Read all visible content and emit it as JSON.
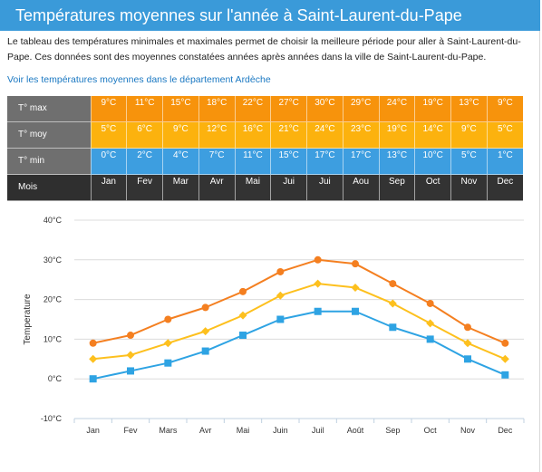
{
  "page": {
    "title": "Températures moyennes sur l'année à Saint-Laurent-du-Pape",
    "intro": "Le tableau des températures minimales et maximales permet de choisir la meilleure période pour aller à Saint-Laurent-du-Pape. Ces données sont des moyennes constatées années après années dans la ville de Saint-Laurent-du-Pape.",
    "link": "Voir les températures moyennes dans le département Ardèche"
  },
  "table": {
    "row_labels": {
      "max": "T° max",
      "moy": "T° moy",
      "min": "T° min",
      "mois": "Mois"
    },
    "max": [
      "9°C",
      "11°C",
      "15°C",
      "18°C",
      "22°C",
      "27°C",
      "30°C",
      "29°C",
      "24°C",
      "19°C",
      "13°C",
      "9°C"
    ],
    "moy": [
      "5°C",
      "6°C",
      "9°C",
      "12°C",
      "16°C",
      "21°C",
      "24°C",
      "23°C",
      "19°C",
      "14°C",
      "9°C",
      "5°C"
    ],
    "min": [
      "0°C",
      "2°C",
      "4°C",
      "7°C",
      "11°C",
      "15°C",
      "17°C",
      "17°C",
      "13°C",
      "10°C",
      "5°C",
      "1°C"
    ],
    "mois": [
      "Jan",
      "Fev",
      "Mar",
      "Avr",
      "Mai",
      "Jui",
      "Jui",
      "Aou",
      "Sep",
      "Oct",
      "Nov",
      "Dec"
    ],
    "colors": {
      "max": "#f7930c",
      "moy": "#fcb20e",
      "min": "#3d9ee0",
      "head": "#6f6f6f",
      "mois": "#333333"
    }
  },
  "chart_data": {
    "type": "line",
    "categories": [
      "Jan",
      "Fev",
      "Mars",
      "Avr",
      "Mai",
      "Juin",
      "Juil",
      "Août",
      "Sep",
      "Oct",
      "Nov",
      "Dec"
    ],
    "series": [
      {
        "values": [
          9,
          11,
          15,
          18,
          22,
          27,
          30,
          29,
          24,
          19,
          13,
          9
        ],
        "color": "#f47f20",
        "marker": "circle"
      },
      {
        "values": [
          5,
          6,
          9,
          12,
          16,
          21,
          24,
          23,
          19,
          14,
          9,
          5
        ],
        "color": "#fdc01e",
        "marker": "diamond"
      },
      {
        "values": [
          0,
          2,
          4,
          7,
          11,
          15,
          17,
          17,
          13,
          10,
          5,
          1
        ],
        "color": "#2ea3e3",
        "marker": "square"
      }
    ],
    "ylabel": "Temperature",
    "xlabel": "",
    "ylim": [
      -10,
      40
    ],
    "yticks": [
      -10,
      0,
      10,
      20,
      30,
      40
    ],
    "ytick_labels": [
      "-10°C",
      "0°C",
      "10°C",
      "20°C",
      "30°C",
      "40°C"
    ],
    "grid": true,
    "legend": "none"
  }
}
